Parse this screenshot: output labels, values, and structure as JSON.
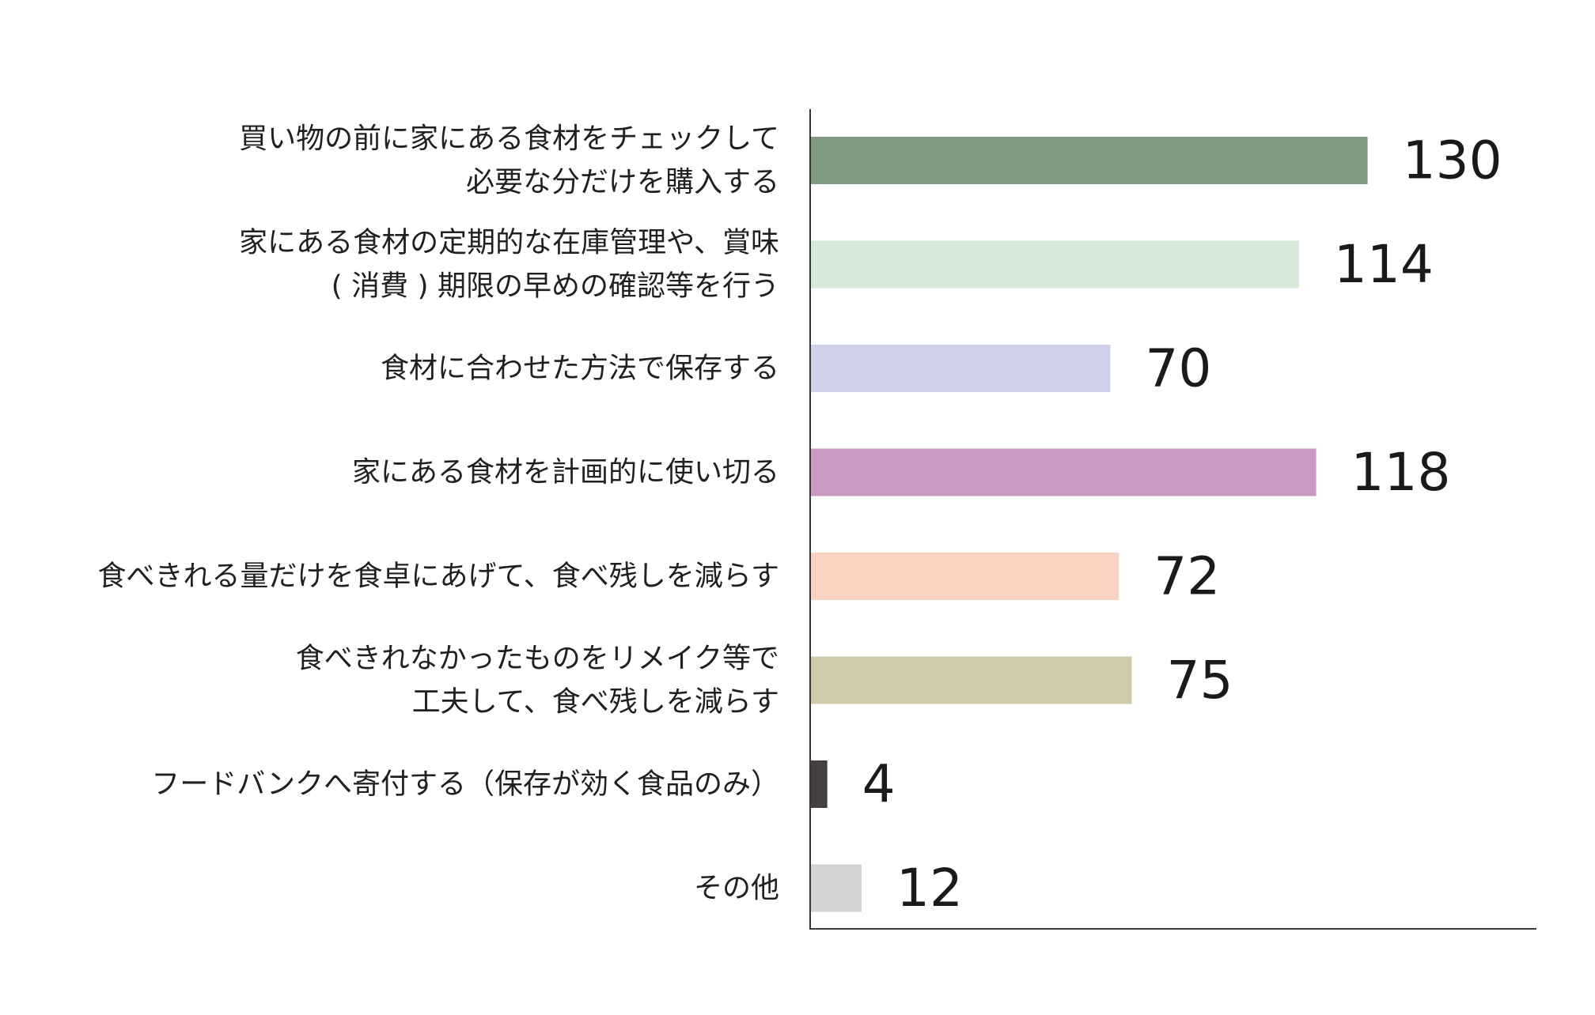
{
  "chart_data": {
    "type": "bar",
    "orientation": "horizontal",
    "title": "",
    "xlabel": "",
    "ylabel": "",
    "xlim": [
      0,
      166
    ],
    "grid": false,
    "legend": "none",
    "categories": [
      [
        "買い物の前に家にある食材をチェックして",
        "必要な分だけを購入する"
      ],
      [
        "家にある食材の定期的な在庫管理や、賞味",
        "( 消費 ) 期限の早めの確認等を行う"
      ],
      [
        "食材に合わせた方法で保存する"
      ],
      [
        "家にある食材を計画的に使い切る"
      ],
      [
        "食べきれる量だけを食卓にあげて、食べ残しを減らす"
      ],
      [
        "食べきれなかったものをリメイク等で",
        "工夫して、食べ残しを減らす"
      ],
      [
        "フードバンクへ寄付する（保存が効く食品のみ）"
      ],
      [
        "その他"
      ]
    ],
    "values": [
      130,
      114,
      70,
      118,
      72,
      75,
      4,
      12
    ],
    "colors": [
      "#809b82",
      "#d6ead7",
      "#ced1e9",
      "#c89ac4",
      "#f8d3c1",
      "#cfcaa9",
      "#453f40",
      "#d3d3d3"
    ]
  }
}
